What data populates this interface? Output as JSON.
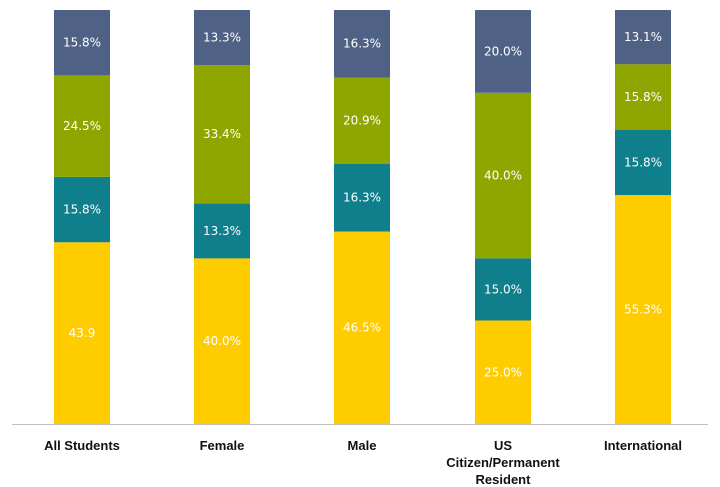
{
  "chart_data": {
    "type": "bar",
    "stacked": true,
    "categories": [
      [
        "All Students"
      ],
      [
        "Female"
      ],
      [
        "Male"
      ],
      [
        "US",
        "Citizen/Permanent",
        "Resident"
      ],
      [
        "International"
      ]
    ],
    "series": [
      {
        "color": "#FFCC00",
        "values": [
          43.9,
          40.0,
          46.5,
          25.0,
          55.3
        ],
        "labels": [
          "43.9",
          "40.0%",
          "46.5%",
          "25.0%",
          "55.3%"
        ]
      },
      {
        "color": "#0F7F8C",
        "values": [
          15.8,
          13.3,
          16.3,
          15.0,
          15.8
        ],
        "labels": [
          "15.8%",
          "13.3%",
          "16.3%",
          "15.0%",
          "15.8%"
        ]
      },
      {
        "color": "#8FA600",
        "values": [
          24.5,
          33.4,
          20.9,
          40.0,
          15.8
        ],
        "labels": [
          "24.5%",
          "33.4%",
          "20.9%",
          "40.0%",
          "15.8%"
        ]
      },
      {
        "color": "#4F6285",
        "values": [
          15.8,
          13.3,
          16.3,
          20.0,
          13.1
        ],
        "labels": [
          "15.8%",
          "13.3%",
          "16.3%",
          "20.0%",
          "13.1%"
        ]
      }
    ],
    "ylim": [
      0,
      100
    ],
    "grid": false,
    "axis_color": "#BFBFBF"
  }
}
